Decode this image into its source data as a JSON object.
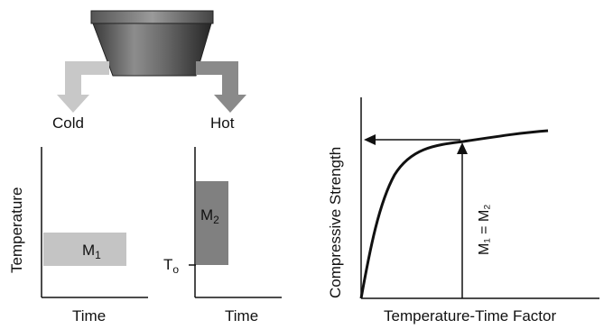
{
  "source": {
    "cold_label": "Cold",
    "hot_label": "Hot"
  },
  "panel_cold": {
    "x_label": "Time",
    "y_label": "Temperature",
    "block_label_main": "M",
    "block_label_sub": "1"
  },
  "panel_hot": {
    "x_label": "Time",
    "block_label_main": "M",
    "block_label_sub": "2",
    "datum_label_main": "T",
    "datum_label_sub": "o"
  },
  "strength_curve": {
    "x_label": "Temperature-Time Factor",
    "y_label": "Compressive Strength",
    "marker_label": "M₁ = M₂"
  },
  "colors": {
    "cold": "#c4c4c4",
    "hot": "#808080",
    "cold_arrow": "#c8c8c8",
    "hot_arrow": "#8a8a8a",
    "axis": "#111111"
  }
}
